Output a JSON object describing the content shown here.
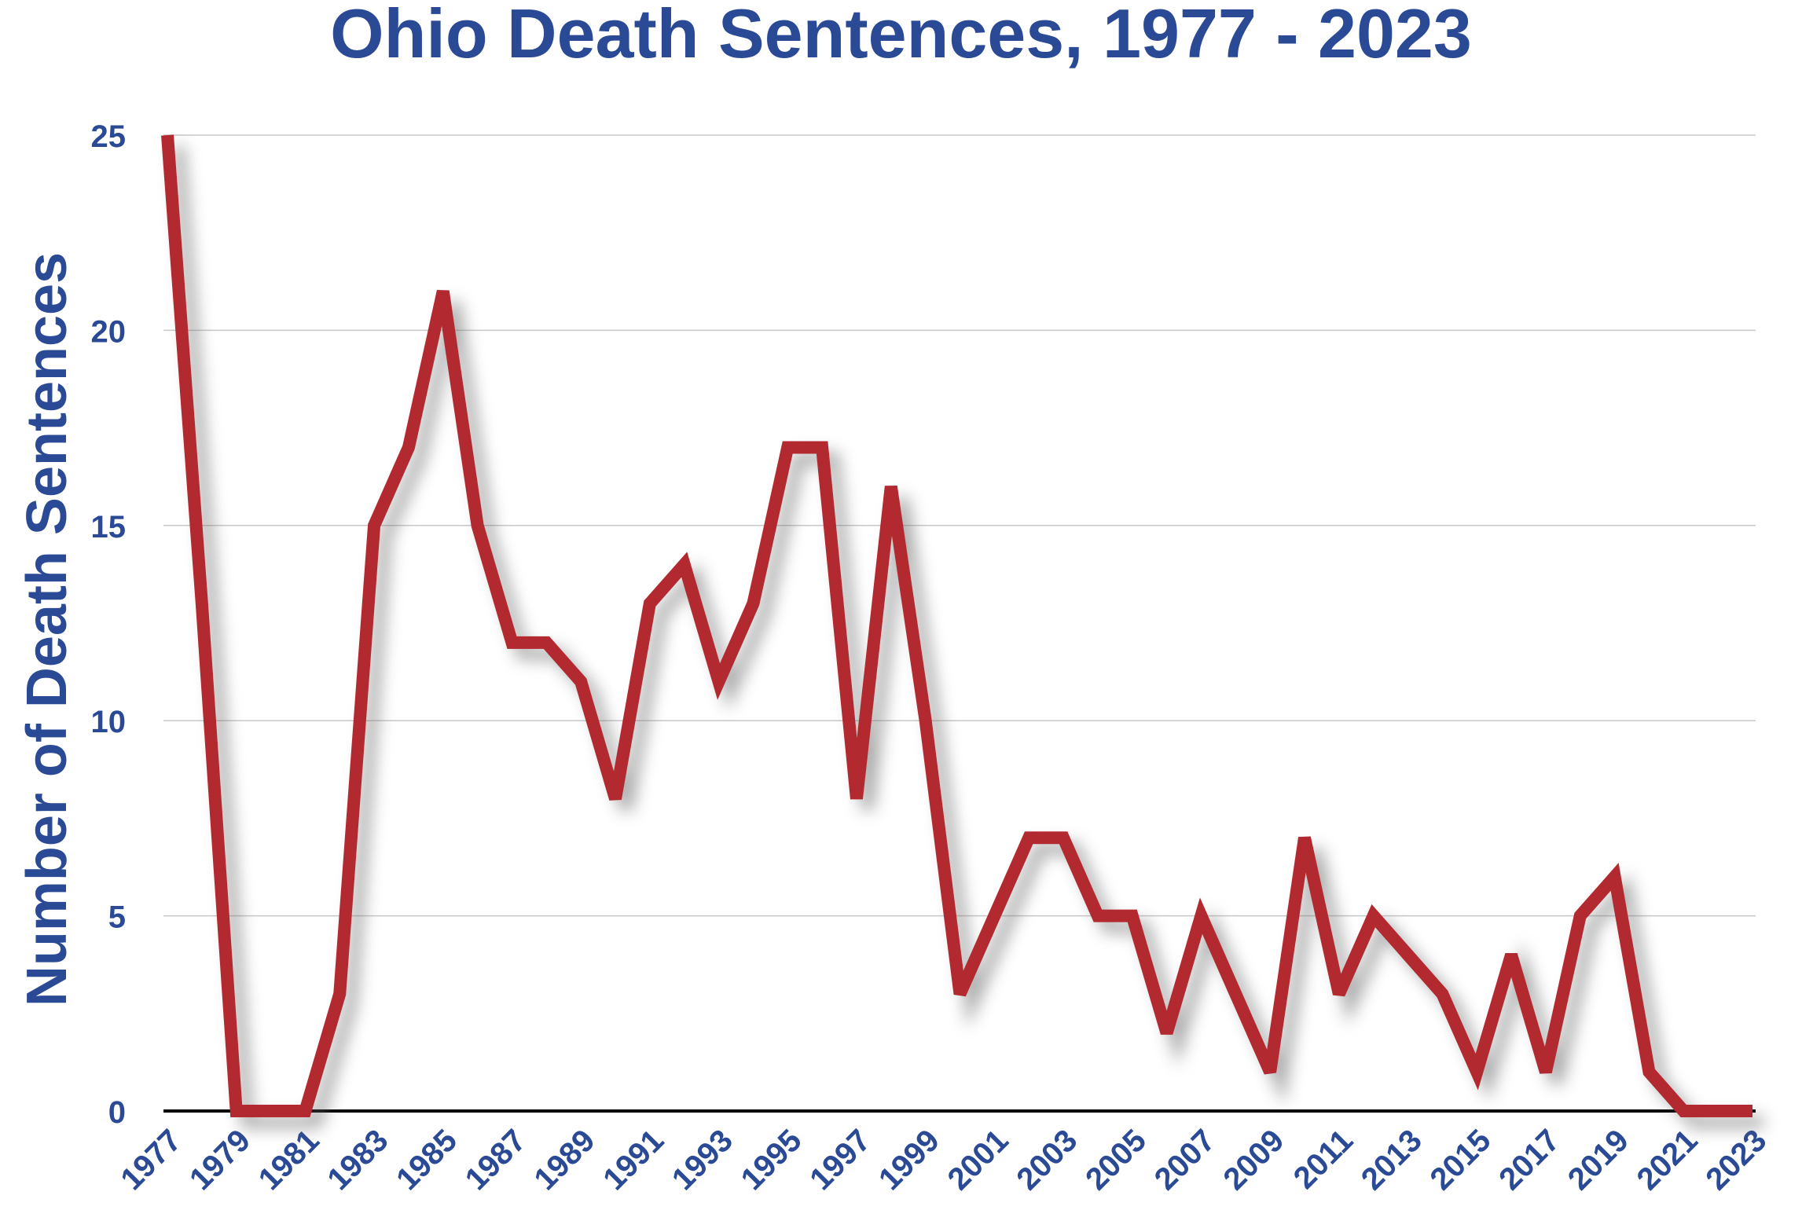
{
  "chart_data": {
    "type": "line",
    "title": "Ohio Death Sentences, 1977 - 2023",
    "xlabel": "",
    "ylabel": "Number of Death Sentences",
    "x": [
      1977,
      1978,
      1979,
      1980,
      1981,
      1982,
      1983,
      1984,
      1985,
      1986,
      1987,
      1988,
      1989,
      1990,
      1991,
      1992,
      1993,
      1994,
      1995,
      1996,
      1997,
      1998,
      1999,
      2000,
      2001,
      2002,
      2003,
      2004,
      2005,
      2006,
      2007,
      2008,
      2009,
      2010,
      2011,
      2012,
      2013,
      2014,
      2015,
      2016,
      2017,
      2018,
      2019,
      2020,
      2021,
      2022,
      2023
    ],
    "series": [
      {
        "name": "Death sentences",
        "color": "#b22a30",
        "values": [
          25,
          13,
          0,
          0,
          0,
          3,
          15,
          17,
          21,
          15,
          12,
          12,
          11,
          8,
          13,
          14,
          11,
          13,
          17,
          17,
          8,
          16,
          10,
          3,
          5,
          7,
          7,
          5,
          5,
          2,
          5,
          3,
          1,
          7,
          3,
          5,
          4,
          3,
          1,
          4,
          1,
          5,
          6,
          1,
          0,
          0,
          0
        ]
      }
    ],
    "ylim": [
      0,
      25
    ],
    "yticks": [
      0,
      5,
      10,
      15,
      20,
      25
    ],
    "xticks": [
      1977,
      1979,
      1981,
      1983,
      1985,
      1987,
      1989,
      1991,
      1993,
      1995,
      1997,
      1999,
      2001,
      2003,
      2005,
      2007,
      2009,
      2011,
      2013,
      2015,
      2017,
      2019,
      2021,
      2023
    ],
    "grid": true,
    "legend": "none"
  }
}
